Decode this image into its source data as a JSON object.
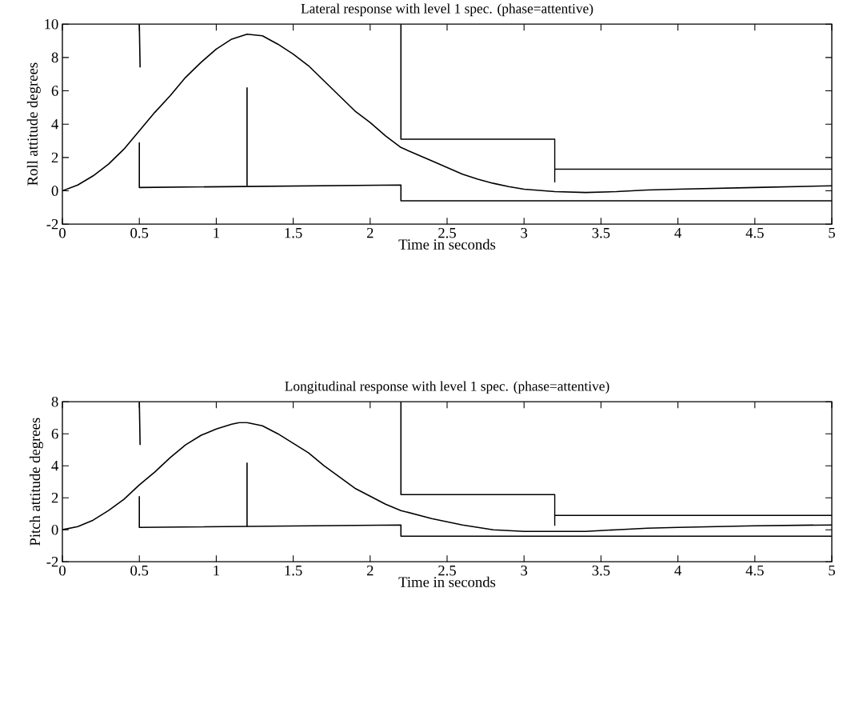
{
  "chart_data": [
    {
      "type": "line",
      "title": "Lateral response with level 1 spec. (phase=attentive)",
      "xlabel": "Time in seconds",
      "ylabel": "Roll attitude degrees",
      "xlim": [
        0,
        5
      ],
      "ylim": [
        -2,
        10
      ],
      "xticks": [
        0,
        0.5,
        1,
        1.5,
        2,
        2.5,
        3,
        3.5,
        4,
        4.5,
        5
      ],
      "yticks": [
        -2,
        0,
        2,
        4,
        6,
        8,
        10
      ],
      "marker": "none",
      "line_style": "solid",
      "series": [
        {
          "color": "#000000",
          "x": [
            0,
            0.1,
            0.2,
            0.3,
            0.4,
            0.5,
            0.6,
            0.7,
            0.8,
            0.9,
            1.0,
            1.1,
            1.2,
            1.3,
            1.4,
            1.5,
            1.6,
            1.7,
            1.8,
            1.9,
            2.0,
            2.1,
            2.2,
            2.3,
            2.4,
            2.5,
            2.6,
            2.7,
            2.8,
            2.9,
            3.0,
            3.2,
            3.4,
            3.6,
            3.8,
            4.0,
            4.5,
            5.0
          ],
          "values": [
            0,
            0.35,
            0.9,
            1.6,
            2.5,
            3.6,
            4.7,
            5.7,
            6.8,
            7.7,
            8.5,
            9.1,
            9.4,
            9.3,
            8.8,
            8.2,
            7.5,
            6.6,
            5.7,
            4.8,
            4.1,
            3.3,
            2.6,
            2.2,
            1.8,
            1.4,
            1.0,
            0.7,
            0.45,
            0.25,
            0.1,
            -0.05,
            -0.1,
            -0.05,
            0.05,
            0.1,
            0.2,
            0.3
          ]
        },
        {
          "color": "#000000",
          "x": [
            0.5,
            0.505
          ],
          "values": [
            10,
            7.4
          ]
        },
        {
          "color": "#000000",
          "x": [
            2.2,
            2.2,
            3.2,
            3.2
          ],
          "values": [
            10,
            3.1,
            3.1,
            0.5
          ]
        },
        {
          "color": "#000000",
          "x": [
            3.2,
            5
          ],
          "values": [
            1.3,
            1.3
          ]
        },
        {
          "color": "#000000",
          "x": [
            0.5,
            0.5,
            2.2,
            2.2,
            5
          ],
          "values": [
            2.9,
            0.2,
            0.35,
            -0.6,
            -0.6
          ]
        },
        {
          "color": "#000000",
          "x": [
            1.2,
            1.2
          ],
          "values": [
            0.3,
            6.2
          ]
        }
      ]
    },
    {
      "type": "line",
      "title": "Longitudinal response with level 1 spec. (phase=attentive)",
      "xlabel": "Time in seconds",
      "ylabel": "Pitch attitude degrees",
      "xlim": [
        0,
        5
      ],
      "ylim": [
        -2,
        8
      ],
      "xticks": [
        0,
        0.5,
        1,
        1.5,
        2,
        2.5,
        3,
        3.5,
        4,
        4.5,
        5
      ],
      "yticks": [
        -2,
        0,
        2,
        4,
        6,
        8
      ],
      "marker": "none",
      "line_style": "solid",
      "series": [
        {
          "color": "#000000",
          "x": [
            0,
            0.1,
            0.2,
            0.3,
            0.4,
            0.5,
            0.6,
            0.7,
            0.8,
            0.9,
            1.0,
            1.1,
            1.15,
            1.2,
            1.3,
            1.4,
            1.5,
            1.6,
            1.7,
            1.8,
            1.9,
            2.0,
            2.1,
            2.2,
            2.4,
            2.6,
            2.8,
            3.0,
            3.2,
            3.4,
            3.6,
            3.8,
            4.0,
            4.5,
            5.0
          ],
          "values": [
            0,
            0.2,
            0.6,
            1.2,
            1.9,
            2.8,
            3.6,
            4.5,
            5.3,
            5.9,
            6.3,
            6.6,
            6.7,
            6.7,
            6.5,
            6.0,
            5.4,
            4.8,
            4.0,
            3.3,
            2.6,
            2.1,
            1.6,
            1.2,
            0.7,
            0.3,
            0.0,
            -0.1,
            -0.1,
            -0.1,
            0.0,
            0.1,
            0.15,
            0.25,
            0.3
          ]
        },
        {
          "color": "#000000",
          "x": [
            0.5,
            0.505
          ],
          "values": [
            8,
            5.3
          ]
        },
        {
          "color": "#000000",
          "x": [
            2.2,
            2.2,
            3.2,
            3.2
          ],
          "values": [
            8,
            2.2,
            2.2,
            0.25
          ]
        },
        {
          "color": "#000000",
          "x": [
            3.2,
            5
          ],
          "values": [
            0.9,
            0.9
          ]
        },
        {
          "color": "#000000",
          "x": [
            0.5,
            0.5,
            2.2,
            2.2,
            5
          ],
          "values": [
            2.1,
            0.15,
            0.3,
            -0.4,
            -0.4
          ]
        },
        {
          "color": "#000000",
          "x": [
            1.2,
            1.2
          ],
          "values": [
            0.2,
            4.2
          ]
        }
      ]
    }
  ]
}
